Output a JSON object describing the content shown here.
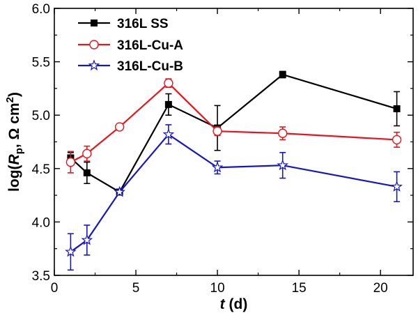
{
  "chart_data": {
    "type": "line",
    "title": "",
    "xlabel": {
      "italic": "t",
      "rest": " (d)"
    },
    "ylabel": {
      "prefix": "log(",
      "italic": "R",
      "sub": "p",
      "mid": ", Ω cm",
      "sup": "2",
      "suffix": ")"
    },
    "xlim": [
      0,
      22
    ],
    "ylim": [
      3.5,
      6.0
    ],
    "xticks": [
      0,
      5,
      10,
      15,
      20
    ],
    "yticks": [
      3.5,
      4.0,
      4.5,
      5.0,
      5.5,
      6.0
    ],
    "xtick_labels": [
      "0",
      "5",
      "10",
      "15",
      "20"
    ],
    "ytick_labels": [
      "3.5",
      "4.0",
      "4.5",
      "5.0",
      "5.5",
      "6.0"
    ],
    "legend_position": "top-left",
    "series": [
      {
        "name": "316L SS",
        "color": "#000000",
        "marker": "square-filled",
        "x": [
          1,
          2,
          4,
          7,
          10,
          14,
          21
        ],
        "values": [
          4.6,
          4.46,
          4.28,
          5.1,
          4.88,
          5.38,
          5.06
        ],
        "errors": [
          0.05,
          0.1,
          0.02,
          0.1,
          0.21,
          0.03,
          0.16
        ]
      },
      {
        "name": "316L-Cu-A",
        "color": "#e8141e",
        "marker": "circle-open",
        "x": [
          1,
          2,
          4,
          7,
          10,
          14,
          21
        ],
        "values": [
          4.56,
          4.64,
          4.89,
          5.3,
          4.85,
          4.83,
          4.77
        ],
        "errors": [
          0.1,
          0.07,
          0.03,
          0.04,
          0.04,
          0.06,
          0.07
        ]
      },
      {
        "name": "316L-Cu-B",
        "color": "#1616c8",
        "marker": "star-open",
        "x": [
          1,
          2,
          4,
          7,
          10,
          14,
          21
        ],
        "values": [
          3.72,
          3.83,
          4.28,
          4.82,
          4.51,
          4.53,
          4.33
        ],
        "errors": [
          0.17,
          0.14,
          0.02,
          0.09,
          0.06,
          0.12,
          0.14
        ]
      }
    ]
  }
}
